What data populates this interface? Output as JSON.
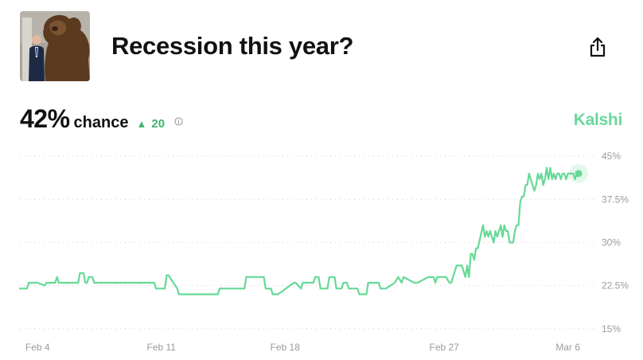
{
  "header": {
    "title": "Recession this year?"
  },
  "summary": {
    "probability": "42%",
    "chance_label": "chance",
    "change": "20"
  },
  "brand": "Kalshi",
  "icons": {
    "share": "share-icon",
    "info": "info-icon",
    "change": "up-triangle-icon"
  },
  "colors": {
    "line": "#66d996",
    "up": "#3fb56f",
    "brand": "#6bd79b",
    "grid": "#d3d3d3",
    "axis_text": "#9a9a9a"
  },
  "chart_data": {
    "type": "line",
    "title": "",
    "xlabel": "",
    "ylabel": "",
    "ylim": [
      14,
      46
    ],
    "y_ticks": [
      15,
      22.5,
      30,
      37.5,
      45
    ],
    "y_tick_labels": [
      "15%",
      "22.5%",
      "30%",
      "37.5%",
      "45%"
    ],
    "x_ticks": [
      "Feb 4",
      "Feb 11",
      "Feb 18",
      "Feb 27",
      "Mar 6"
    ],
    "x_tick_positions": [
      4,
      11,
      18,
      27,
      34
    ],
    "grid": true,
    "series": [
      {
        "x": [
          3.0,
          3.4,
          3.5,
          4.0,
          4.4,
          4.5,
          5.0,
          5.1,
          5.2,
          5.8,
          6.3,
          6.4,
          6.6,
          6.7,
          6.8,
          6.9,
          7.1,
          7.2,
          7.4,
          10.6,
          10.7,
          11.2,
          11.3,
          11.4,
          11.9,
          12.0,
          14.2,
          14.3,
          14.6,
          14.7,
          15.7,
          15.8,
          16.8,
          16.9,
          17.2,
          17.3,
          17.6,
          18.5,
          18.6,
          18.9,
          19.0,
          19.1,
          19.6,
          19.7,
          19.9,
          20.0,
          20.4,
          20.5,
          20.8,
          20.9,
          21.2,
          21.3,
          21.5,
          21.6,
          22.1,
          22.2,
          22.6,
          22.7,
          23.3,
          23.4,
          23.6,
          23.7,
          24.2,
          24.4,
          24.6,
          24.7,
          25.3,
          25.4,
          25.5,
          26.1,
          26.2,
          26.4,
          26.5,
          26.6,
          27.0,
          27.1,
          27.3,
          27.4,
          27.6,
          27.7,
          27.9,
          28.0,
          28.2,
          28.3,
          28.4,
          28.5,
          28.6,
          28.7,
          28.8,
          28.9,
          29.2,
          29.3,
          29.4,
          29.5,
          29.6,
          29.7,
          29.8,
          29.9,
          30.0,
          30.1,
          30.2,
          30.3,
          30.4,
          30.5,
          30.6,
          30.7,
          30.8,
          30.9,
          31.0,
          31.1,
          31.2,
          31.3,
          31.4,
          31.5,
          31.6,
          31.7,
          31.8,
          31.9,
          32.0,
          32.1,
          32.2,
          32.3,
          32.4,
          32.5,
          32.6,
          32.7,
          32.8,
          32.9,
          33.0,
          33.1,
          33.2,
          33.3,
          33.4,
          33.5,
          33.6,
          33.7,
          33.8,
          33.9,
          34.0,
          34.1,
          34.3,
          34.4,
          34.5,
          34.6
        ],
        "y": [
          22,
          22,
          23,
          23,
          22.5,
          23,
          23,
          24,
          23,
          23,
          23,
          24.7,
          24.7,
          23,
          23,
          24,
          24,
          23,
          23,
          23,
          22,
          22,
          24.3,
          24.3,
          22,
          21,
          21,
          22,
          22,
          22,
          22,
          24,
          24,
          22,
          22,
          21,
          21,
          23,
          23,
          22,
          23,
          23,
          23,
          24,
          24,
          22,
          22,
          24,
          24,
          22,
          22,
          23,
          23,
          22,
          22,
          21,
          21,
          23,
          23,
          22,
          22,
          22,
          23,
          24,
          23,
          24,
          23,
          23,
          23,
          24,
          24,
          24,
          23,
          24,
          24,
          24,
          23,
          23,
          25,
          26,
          26,
          26,
          24,
          26,
          24,
          28,
          28,
          27,
          29,
          29,
          33,
          31,
          32,
          31,
          32,
          31,
          30,
          32,
          31,
          32,
          33,
          31,
          33,
          32,
          32,
          30,
          30,
          30,
          32,
          33,
          33,
          37,
          38,
          38,
          40,
          40,
          42,
          41,
          40,
          39,
          40,
          42,
          41,
          42,
          40,
          41,
          43,
          41,
          43,
          41,
          42,
          41,
          42,
          42,
          41,
          42,
          42,
          41,
          42,
          42,
          42,
          41,
          42,
          42
        ]
      }
    ],
    "last_value": 42
  }
}
